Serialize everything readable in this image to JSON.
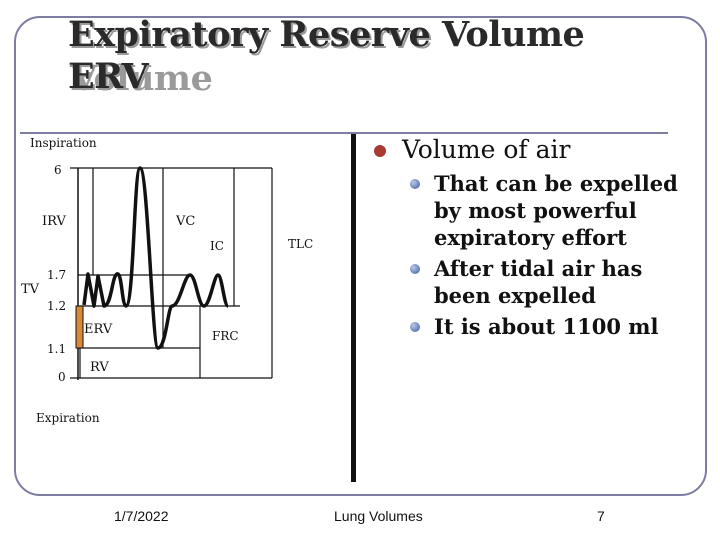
{
  "slide": {
    "title_line1": "Expiratory Reserve Volume",
    "title_line2": "ERV"
  },
  "diagram": {
    "labels": {
      "inspiration": "Inspiration",
      "expiration": "Expiration",
      "irv": "IRV",
      "vc": "VC",
      "ic": "IC",
      "tlc": "TLC",
      "tv": "TV",
      "erv": "ERV",
      "frc": "FRC",
      "rv": "RV"
    },
    "axis_values": [
      "6",
      "1.7",
      "1.2",
      "1.1",
      "0"
    ],
    "colors": {
      "erv_bar": "#d9883a",
      "trace": "#111111"
    }
  },
  "content": {
    "main_bullet": "Volume of air",
    "sub_bullets": [
      "That can be expelled by most powerful expiratory effort",
      "After tidal air has been expelled",
      "It is about 1100 ml"
    ]
  },
  "footer": {
    "date": "1/7/2022",
    "topic": "Lung Volumes",
    "page": "7"
  },
  "colors": {
    "frame": "#7c7ca4",
    "bullet_main": "#a83a32",
    "bullet_sub": "#3a5aa0"
  }
}
